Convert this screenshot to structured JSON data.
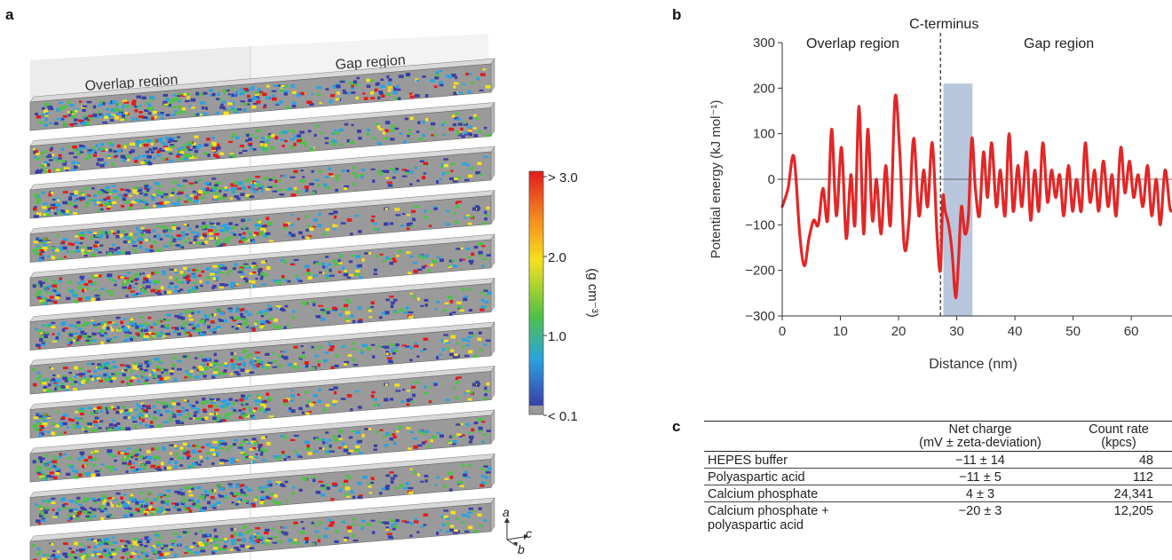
{
  "panel_a": {
    "letter": "a",
    "overlap_label": "Overlap region",
    "gap_label": "Gap region",
    "colorbar": {
      "ticks": [
        "> 3.0",
        "2.0",
        "1.0",
        "< 0.1"
      ],
      "unit": "(g cm⁻³)",
      "colors": [
        "#e31a1c",
        "#f7e01c",
        "#4fc148",
        "#2aa3e0",
        "#3a3fa8",
        "#9a9a9a"
      ]
    },
    "axes_labels": [
      "a",
      "c",
      "b"
    ],
    "strip_count": 11
  },
  "panel_b": {
    "letter": "b",
    "chart_data": {
      "type": "line",
      "xlabel": "Distance (nm)",
      "ylabel": "Potential energy (kJ mol⁻¹)",
      "xlim": [
        0,
        67
      ],
      "ylim": [
        -300,
        300
      ],
      "x_ticks": [
        "0",
        "10",
        "20",
        "30",
        "40",
        "50",
        "60"
      ],
      "y_ticks": [
        "300",
        "200",
        "100",
        "0",
        "−100",
        "−200",
        "−300"
      ],
      "annotations": {
        "c_terminus": "C-terminus",
        "overlap": "Overlap region",
        "gap": "Gap region",
        "dashed_line_x": 27.2,
        "shaded_x": [
          27.7,
          32.7
        ],
        "shaded_top_y": 210
      },
      "line_color": "#e32626",
      "shade_color": "#b9c7de",
      "series": [
        {
          "x": [
            0,
            1,
            2,
            3,
            3.8,
            4.6,
            5.4,
            6.2,
            7,
            7.8,
            8.5,
            9.3,
            10.2,
            11,
            11.8,
            12.5,
            13.2,
            14,
            14.7,
            15.5,
            16.2,
            17,
            17.8,
            18.6,
            19.4,
            20.2,
            21,
            21.8,
            22.6,
            23.5,
            24.3,
            25,
            25.8,
            26.6,
            27.2,
            27.6,
            28,
            28.6,
            29.2,
            29.8,
            30.3,
            30.8,
            31.4,
            32,
            32.6,
            33.2,
            33.9,
            34.6,
            35.3,
            36,
            36.8,
            37.5,
            38.3,
            39,
            39.7,
            40.5,
            41.2,
            42,
            42.7,
            43.4,
            44.1,
            44.8,
            45.6,
            46.3,
            47,
            47.7,
            48.4,
            49.2,
            49.9,
            50.6,
            51.4,
            52.1,
            52.9,
            53.7,
            54.4,
            55.2,
            56,
            56.7,
            57.4,
            58.2,
            58.9,
            59.7,
            60.4,
            61.2,
            62,
            62.8,
            63.5,
            64.3,
            65,
            65.8,
            66.6,
            67
          ],
          "y": [
            -60,
            -20,
            50,
            -120,
            -190,
            -130,
            -90,
            -100,
            -20,
            -90,
            110,
            -80,
            70,
            -130,
            10,
            -100,
            160,
            -120,
            110,
            -90,
            0,
            -120,
            30,
            -100,
            180,
            60,
            -150,
            -90,
            90,
            -80,
            20,
            -60,
            80,
            -120,
            -200,
            -40,
            -70,
            -100,
            -160,
            -260,
            -180,
            -60,
            -120,
            -80,
            90,
            -20,
            -80,
            60,
            -40,
            80,
            -60,
            20,
            -80,
            100,
            -70,
            30,
            -60,
            60,
            -90,
            20,
            -70,
            80,
            -50,
            20,
            -40,
            10,
            -80,
            30,
            -70,
            0,
            -70,
            80,
            -50,
            20,
            -70,
            40,
            -60,
            10,
            -80,
            70,
            -30,
            40,
            -40,
            10,
            -60,
            30,
            -80,
            0,
            -100,
            20,
            -60,
            -70
          ]
        }
      ]
    }
  },
  "panel_c": {
    "letter": "c",
    "headers": [
      "",
      "Net charge\n(mV ±  zeta-deviation)",
      "Count rate\n(kpcs)"
    ],
    "rows": [
      [
        "HEPES buffer",
        "−11 ± 14",
        "48"
      ],
      [
        "Polyaspartic acid",
        "−11 ± 5",
        "112"
      ],
      [
        "Calcium phosphate",
        "4 ± 3",
        "24,341"
      ],
      [
        "Calcium phosphate +\npolyaspartic acid",
        "−20 ± 3",
        "12,205"
      ]
    ]
  }
}
